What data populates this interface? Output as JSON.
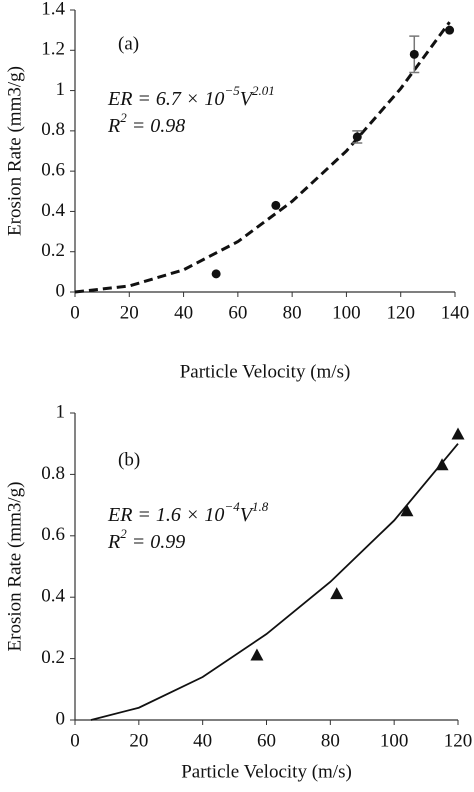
{
  "chart_data": [
    {
      "type": "scatter",
      "panel_label": "(a)",
      "x_label": "Particle Velocity (m/s)",
      "y_label": "Erosion Rate (mm3/g)",
      "equation": [
        "ER = 6.7 × 10",
        "−5",
        "V",
        "2.01"
      ],
      "r2": [
        "R",
        "2",
        " = 0.98"
      ],
      "marker": "circle",
      "color": "#111111",
      "x": [
        52,
        74,
        104,
        125,
        138
      ],
      "values": [
        0.09,
        0.43,
        0.77,
        1.18,
        1.3
      ],
      "errors": [
        null,
        null,
        0.03,
        0.09,
        null
      ],
      "fit": {
        "x": [
          0,
          20,
          40,
          60,
          80,
          100,
          120,
          138
        ],
        "values": [
          0,
          0.03,
          0.11,
          0.25,
          0.45,
          0.7,
          1.01,
          1.34
        ],
        "dashed": true
      },
      "xlim": [
        0,
        140
      ],
      "xticks": [
        0,
        20,
        40,
        60,
        80,
        100,
        120,
        140
      ],
      "ylim": [
        0,
        1.4
      ],
      "yticks": [
        0,
        0.2,
        0.4,
        0.6,
        0.8,
        1,
        1.2,
        1.4
      ]
    },
    {
      "type": "scatter",
      "panel_label": "(b)",
      "x_label": "Particle Velocity (m/s)",
      "y_label": "Erosion Rate (mm3/g)",
      "equation": [
        "ER = 1.6 × 10",
        "−4",
        "V",
        "1.8"
      ],
      "r2": [
        "R",
        "2",
        " = 0.99"
      ],
      "marker": "triangle",
      "color": "#111111",
      "x": [
        57,
        82,
        104,
        115,
        120
      ],
      "values": [
        0.21,
        0.41,
        0.68,
        0.83,
        0.93
      ],
      "errors": [
        null,
        null,
        null,
        null,
        null
      ],
      "fit": {
        "x": [
          5,
          20,
          40,
          60,
          80,
          100,
          120
        ],
        "values": [
          0,
          0.04,
          0.14,
          0.28,
          0.45,
          0.65,
          0.9
        ],
        "dashed": false
      },
      "xlim": [
        0,
        120
      ],
      "xticks": [
        0,
        20,
        40,
        60,
        80,
        100,
        120
      ],
      "ylim": [
        0,
        1
      ],
      "yticks": [
        0,
        0.2,
        0.4,
        0.6,
        0.8,
        1
      ]
    }
  ]
}
